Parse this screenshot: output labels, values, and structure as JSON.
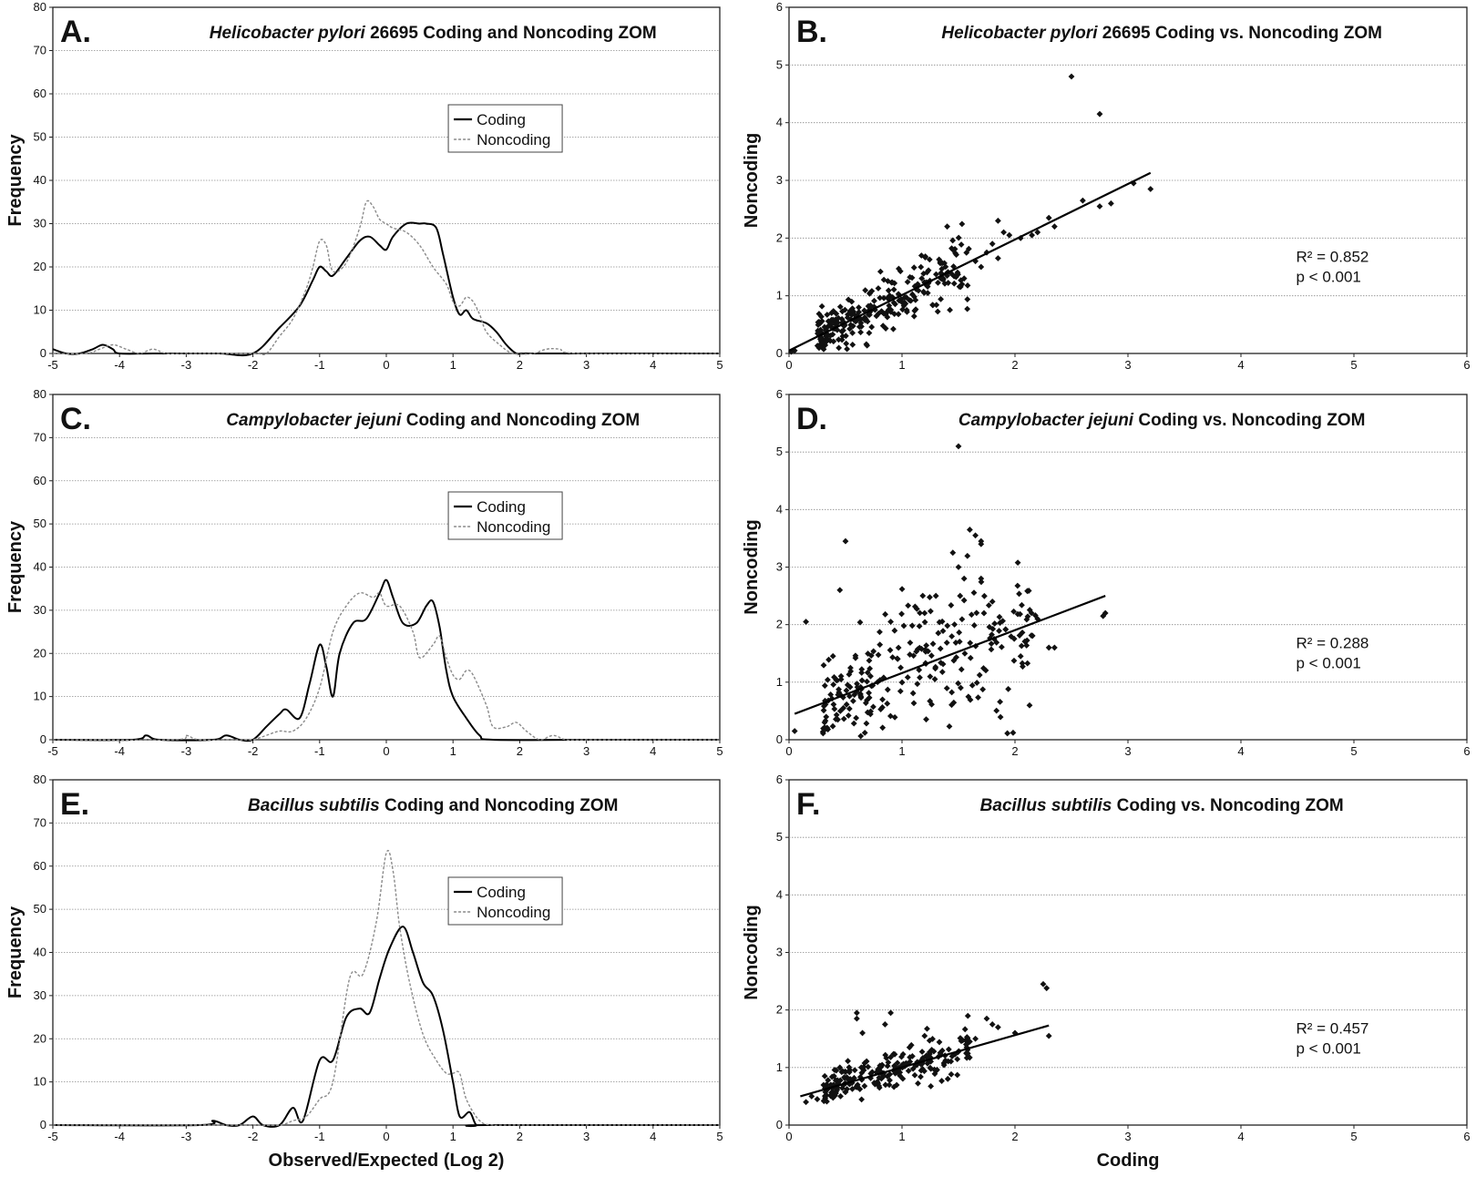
{
  "chart_data": [
    {
      "id": "A",
      "type": "line",
      "letter": "A.",
      "title_italic": "Helicobacter pylori",
      "title_rest": " 26695 Coding and Noncoding ZOM",
      "xlabel": "",
      "ylabel": "Frequency",
      "xlim": [
        -5,
        5
      ],
      "ylim": [
        0,
        80
      ],
      "xticks": [
        -5,
        -4,
        -3,
        -2,
        -1,
        0,
        1,
        2,
        3,
        4,
        5
      ],
      "yticks": [
        0,
        10,
        20,
        30,
        40,
        50,
        60,
        70,
        80
      ],
      "grid": true,
      "legend_position": "upper-middle",
      "series": [
        {
          "name": "Coding",
          "color": "#000000",
          "style": "solid",
          "x": [
            -5.0,
            -4.8,
            -4.6,
            -4.4,
            -4.25,
            -4.1,
            -4.0,
            -3.5,
            -3.0,
            -2.5,
            -2.0,
            -1.6,
            -1.3,
            -1.1,
            -1.0,
            -0.9,
            -0.8,
            -0.6,
            -0.4,
            -0.25,
            -0.1,
            0.0,
            0.1,
            0.3,
            0.5,
            0.6,
            0.75,
            0.85,
            1.0,
            1.1,
            1.2,
            1.3,
            1.5,
            1.65,
            1.8,
            1.95,
            2.1,
            3.0,
            5.0
          ],
          "y": [
            1,
            0,
            0,
            1,
            2,
            1,
            0,
            0,
            0,
            0,
            0,
            6,
            11,
            17,
            20,
            19,
            18,
            22,
            26,
            27,
            25,
            24,
            27,
            30,
            30,
            30,
            29,
            23,
            13,
            9,
            10,
            8,
            7,
            5,
            2,
            0,
            0,
            0,
            0
          ]
        },
        {
          "name": "Noncoding",
          "color": "#8a8a8a",
          "style": "dashed",
          "x": [
            -5.0,
            -4.5,
            -4.3,
            -4.1,
            -3.9,
            -3.7,
            -3.5,
            -3.3,
            -3.0,
            -2.0,
            -1.8,
            -1.6,
            -1.4,
            -1.2,
            -1.1,
            -1.0,
            -0.9,
            -0.8,
            -0.6,
            -0.4,
            -0.3,
            -0.2,
            -0.1,
            0.0,
            0.1,
            0.3,
            0.5,
            0.7,
            0.9,
            1.0,
            1.1,
            1.2,
            1.3,
            1.4,
            1.5,
            1.7,
            1.9,
            2.2,
            2.4,
            2.6,
            2.9,
            5.0
          ],
          "y": [
            0,
            0,
            1,
            2,
            1,
            0,
            1,
            0,
            0,
            0,
            0,
            4,
            8,
            15,
            20,
            26,
            25,
            19,
            21,
            29,
            35,
            34,
            31,
            30,
            29,
            28,
            25,
            20,
            16,
            12,
            11,
            13,
            12,
            9,
            5,
            2,
            0,
            0,
            1,
            1,
            0,
            0
          ]
        }
      ]
    },
    {
      "id": "B",
      "type": "scatter",
      "letter": "B.",
      "title_italic": "Helicobacter pylori",
      "title_rest": " 26695 Coding vs. Noncoding ZOM",
      "xlabel": "",
      "ylabel": "Noncoding",
      "xlim": [
        0,
        6
      ],
      "ylim": [
        0,
        6
      ],
      "xticks": [
        0,
        1,
        2,
        3,
        4,
        5,
        6
      ],
      "yticks": [
        0,
        1,
        2,
        3,
        4,
        5,
        6
      ],
      "grid": true,
      "r2_text": "R² = 0.852",
      "p_text": "p < 0.001",
      "fit": {
        "x": [
          0.0,
          3.2
        ],
        "y": [
          0.05,
          3.13
        ]
      },
      "cloud": {
        "n": 280,
        "xmin": 0.25,
        "xmax": 1.6,
        "slope": 0.96,
        "intercept": 0.05,
        "noise": 0.22,
        "seed": 17
      },
      "points": [
        [
          2.5,
          4.8
        ],
        [
          2.75,
          4.15
        ],
        [
          3.2,
          2.85
        ],
        [
          3.05,
          2.95
        ],
        [
          2.85,
          2.6
        ],
        [
          2.75,
          2.55
        ],
        [
          2.6,
          2.65
        ],
        [
          2.35,
          2.2
        ],
        [
          2.3,
          2.35
        ],
        [
          2.2,
          2.1
        ],
        [
          2.15,
          2.05
        ],
        [
          2.05,
          2.0
        ],
        [
          1.95,
          2.05
        ],
        [
          1.9,
          2.1
        ],
        [
          1.85,
          2.3
        ],
        [
          1.8,
          1.9
        ],
        [
          1.75,
          1.75
        ],
        [
          1.85,
          1.65
        ],
        [
          1.65,
          1.6
        ],
        [
          1.4,
          2.2
        ],
        [
          1.45,
          1.8
        ],
        [
          0.02,
          0.03
        ],
        [
          0.05,
          0.05
        ],
        [
          1.55,
          1.3
        ],
        [
          1.7,
          1.5
        ]
      ]
    },
    {
      "id": "C",
      "type": "line",
      "letter": "C.",
      "title_italic": "Campylobacter jejuni",
      "title_rest": " Coding and Noncoding ZOM",
      "xlabel": "",
      "ylabel": "Frequency",
      "xlim": [
        -5,
        5
      ],
      "ylim": [
        0,
        80
      ],
      "xticks": [
        -5,
        -4,
        -3,
        -2,
        -1,
        0,
        1,
        2,
        3,
        4,
        5
      ],
      "yticks": [
        0,
        10,
        20,
        30,
        40,
        50,
        60,
        70,
        80
      ],
      "grid": true,
      "legend_position": "upper-middle",
      "series": [
        {
          "name": "Coding",
          "color": "#000000",
          "style": "solid",
          "x": [
            -5.0,
            -3.8,
            -3.6,
            -3.4,
            -2.6,
            -2.4,
            -2.2,
            -2.0,
            -1.8,
            -1.6,
            -1.5,
            -1.3,
            -1.15,
            -1.0,
            -0.9,
            -0.8,
            -0.7,
            -0.5,
            -0.3,
            -0.1,
            0.0,
            0.1,
            0.25,
            0.45,
            0.6,
            0.7,
            0.8,
            0.9,
            1.0,
            1.2,
            1.4,
            1.6,
            3.0,
            5.0
          ],
          "y": [
            0,
            0,
            1,
            0,
            0,
            1,
            0,
            0,
            3,
            6,
            7,
            5,
            13,
            22,
            17,
            10,
            20,
            27,
            28,
            34,
            37,
            33,
            27,
            27,
            31,
            32,
            26,
            16,
            10,
            5,
            1,
            0,
            0,
            0
          ]
        },
        {
          "name": "Noncoding",
          "color": "#8a8a8a",
          "style": "dashed",
          "x": [
            -5.0,
            -3.2,
            -3.0,
            -2.8,
            -2.2,
            -2.0,
            -1.8,
            -1.6,
            -1.4,
            -1.2,
            -1.0,
            -0.8,
            -0.6,
            -0.4,
            -0.2,
            -0.1,
            0.0,
            0.2,
            0.4,
            0.5,
            0.7,
            0.8,
            0.9,
            1.0,
            1.1,
            1.2,
            1.3,
            1.5,
            1.6,
            1.8,
            1.95,
            2.1,
            2.3,
            2.5,
            2.7,
            3.0,
            5.0
          ],
          "y": [
            0,
            0,
            1,
            0,
            0,
            0,
            1,
            2,
            2,
            5,
            12,
            25,
            31,
            34,
            33,
            34,
            31,
            31,
            25,
            19,
            22,
            24,
            19,
            15,
            14,
            16,
            15,
            8,
            3,
            3,
            4,
            2,
            0,
            1,
            0,
            0,
            0
          ]
        }
      ]
    },
    {
      "id": "D",
      "type": "scatter",
      "letter": "D.",
      "title_italic": "Campylobacter jejuni",
      "title_rest": " Coding vs. Noncoding ZOM",
      "xlabel": "",
      "ylabel": "Noncoding",
      "xlim": [
        0,
        6
      ],
      "ylim": [
        0,
        6
      ],
      "xticks": [
        0,
        1,
        2,
        3,
        4,
        5,
        6
      ],
      "yticks": [
        0,
        1,
        2,
        3,
        4,
        5,
        6
      ],
      "grid": true,
      "r2_text": "R² = 0.288",
      "p_text": "p < 0.001",
      "fit": {
        "x": [
          0.05,
          2.8
        ],
        "y": [
          0.45,
          2.5
        ]
      },
      "cloud": {
        "n": 260,
        "xmin": 0.3,
        "xmax": 2.2,
        "slope": 0.74,
        "intercept": 0.41,
        "noise": 0.45,
        "seed": 29
      },
      "points": [
        [
          1.5,
          5.1
        ],
        [
          1.6,
          3.65
        ],
        [
          1.65,
          3.55
        ],
        [
          1.7,
          3.45
        ],
        [
          1.7,
          3.4
        ],
        [
          0.5,
          3.45
        ],
        [
          1.45,
          3.25
        ],
        [
          1.5,
          3.0
        ],
        [
          1.55,
          2.8
        ],
        [
          1.7,
          2.8
        ],
        [
          0.45,
          2.6
        ],
        [
          0.15,
          2.05
        ],
        [
          2.8,
          2.2
        ],
        [
          2.78,
          2.15
        ],
        [
          2.3,
          1.6
        ],
        [
          2.35,
          1.6
        ],
        [
          2.2,
          2.1
        ],
        [
          0.05,
          0.15
        ],
        [
          1.8,
          2.4
        ],
        [
          1.2,
          2.2
        ],
        [
          0.9,
          2.05
        ],
        [
          2.05,
          1.45
        ],
        [
          1.3,
          2.5
        ]
      ]
    },
    {
      "id": "E",
      "type": "line",
      "letter": "E.",
      "title_italic": "Bacillus subtilis",
      "title_rest": " Coding and Noncoding ZOM",
      "xlabel": "Observed/Expected (Log 2)",
      "ylabel": "Frequency",
      "xlim": [
        -5,
        5
      ],
      "ylim": [
        0,
        80
      ],
      "xticks": [
        -5,
        -4,
        -3,
        -2,
        -1,
        0,
        1,
        2,
        3,
        4,
        5
      ],
      "yticks": [
        0,
        10,
        20,
        30,
        40,
        50,
        60,
        70,
        80
      ],
      "grid": true,
      "legend_position": "upper-middle",
      "series": [
        {
          "name": "Coding",
          "color": "#000000",
          "style": "solid",
          "x": [
            -5.0,
            -2.8,
            -2.6,
            -2.4,
            -2.2,
            -2.0,
            -1.85,
            -1.6,
            -1.4,
            -1.25,
            -1.0,
            -0.8,
            -0.6,
            -0.4,
            -0.25,
            -0.1,
            0.05,
            0.25,
            0.4,
            0.55,
            0.7,
            0.85,
            1.0,
            1.1,
            1.25,
            1.35,
            1.5,
            5.0
          ],
          "y": [
            0,
            0,
            1,
            0,
            0,
            2,
            0,
            0,
            4,
            1,
            15,
            15,
            25,
            27,
            26,
            34,
            41,
            46,
            40,
            33,
            30,
            22,
            10,
            2,
            3,
            0,
            0,
            0
          ]
        },
        {
          "name": "Noncoding",
          "color": "#8a8a8a",
          "style": "dashed",
          "x": [
            -5.0,
            -2.5,
            -2.0,
            -1.6,
            -1.4,
            -1.2,
            -1.0,
            -0.8,
            -0.55,
            -0.35,
            -0.15,
            0.0,
            0.1,
            0.2,
            0.35,
            0.55,
            0.75,
            0.9,
            1.0,
            1.1,
            1.2,
            1.4,
            1.6,
            2.0,
            5.0
          ],
          "y": [
            0,
            0,
            0,
            0,
            1,
            2,
            6,
            10,
            34,
            35,
            47,
            63,
            59,
            46,
            33,
            21,
            15,
            12,
            12,
            12,
            6,
            1,
            0,
            0,
            0
          ]
        }
      ]
    },
    {
      "id": "F",
      "type": "scatter",
      "letter": "F.",
      "title_italic": "Bacillus subtilis",
      "title_rest": " Coding vs. Noncoding ZOM",
      "xlabel": "Coding",
      "ylabel": "Noncoding",
      "xlim": [
        0,
        6
      ],
      "ylim": [
        0,
        6
      ],
      "xticks": [
        0,
        1,
        2,
        3,
        4,
        5,
        6
      ],
      "yticks": [
        0,
        1,
        2,
        3,
        4,
        5,
        6
      ],
      "grid": true,
      "r2_text": "R² = 0.457",
      "p_text": "p < 0.001",
      "fit": {
        "x": [
          0.1,
          2.3
        ],
        "y": [
          0.5,
          1.73
        ]
      },
      "cloud": {
        "n": 230,
        "xmin": 0.3,
        "xmax": 1.6,
        "slope": 0.56,
        "intercept": 0.44,
        "noise": 0.17,
        "seed": 43
      },
      "points": [
        [
          2.25,
          2.45
        ],
        [
          2.28,
          2.38
        ],
        [
          0.6,
          1.95
        ],
        [
          0.6,
          1.85
        ],
        [
          0.9,
          1.95
        ],
        [
          0.85,
          1.75
        ],
        [
          1.75,
          1.85
        ],
        [
          1.8,
          1.75
        ],
        [
          1.85,
          1.7
        ],
        [
          2.3,
          1.55
        ],
        [
          0.15,
          0.4
        ],
        [
          0.2,
          0.5
        ],
        [
          0.25,
          0.45
        ],
        [
          1.6,
          1.45
        ],
        [
          1.65,
          1.5
        ],
        [
          2.0,
          1.6
        ],
        [
          0.65,
          1.6
        ],
        [
          1.2,
          1.55
        ],
        [
          0.45,
          1.0
        ]
      ]
    }
  ]
}
